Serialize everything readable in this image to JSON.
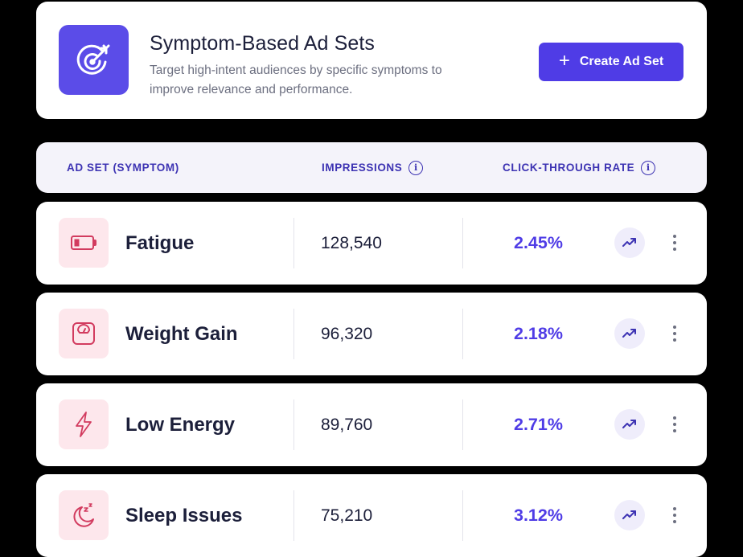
{
  "header": {
    "title": "Symptom-Based Ad Sets",
    "subtitle": "Target high-intent audiences by specific symptoms to improve relevance and performance.",
    "icon": "target-arrow-icon",
    "create_button": {
      "plus": "+",
      "label": "Create Ad Set"
    }
  },
  "table": {
    "columns": {
      "name": "AD SET (SYMPTOM)",
      "impressions": "IMPRESSIONS",
      "ctr": "CLICK-THROUGH RATE",
      "info_glyph": "i"
    },
    "rows": [
      {
        "name": "Fatigue",
        "icon": "battery-low-icon",
        "impressions": "128,540",
        "ctr": "2.45%"
      },
      {
        "name": "Weight Gain",
        "icon": "scale-icon",
        "impressions": "96,320",
        "ctr": "2.18%"
      },
      {
        "name": "Low Energy",
        "icon": "lightning-icon",
        "impressions": "89,760",
        "ctr": "2.71%"
      },
      {
        "name": "Sleep Issues",
        "icon": "moon-sleep-icon",
        "impressions": "75,210",
        "ctr": "3.12%"
      }
    ]
  },
  "colors": {
    "accent": "#4f3ce6",
    "header_icon_bg": "#5b4ce8",
    "row_icon_bg": "#fde7ec",
    "row_icon_stroke": "#d23b5f",
    "table_header_bg": "#f4f3fa",
    "text_dark": "#1c1f3a",
    "text_muted": "#6c6f80"
  }
}
